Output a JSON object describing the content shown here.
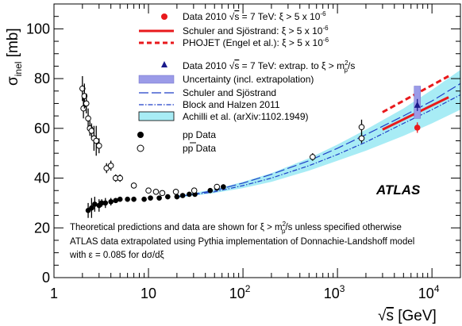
{
  "chart_data": {
    "type": "scatter",
    "xscale": "log",
    "xlim": [
      1,
      20000
    ],
    "ylim": [
      0,
      110
    ],
    "x_ticks": [
      {
        "value": 1,
        "label": "1"
      },
      {
        "value": 10,
        "label": "10"
      },
      {
        "value": 100,
        "base": "10",
        "exp": "2"
      },
      {
        "value": 1000,
        "base": "10",
        "exp": "3"
      },
      {
        "value": 10000,
        "base": "10",
        "exp": "4"
      }
    ],
    "y_ticks": [
      0,
      20,
      40,
      60,
      80,
      100
    ],
    "xlabel": {
      "sqrt": "√",
      "var": "s",
      "unit": " [GeV]"
    },
    "ylabel": {
      "sigma": "σ",
      "sub": "inel",
      "unit": " [mb]"
    },
    "atlas_label": "ATLAS",
    "legend": {
      "data2010": {
        "prefix": "Data 2010 ",
        "sqrt": "√",
        "var": "s",
        "eq": " = 7 TeV: ξ > 5 x 10",
        "exp": "-6"
      },
      "schuler": {
        "text": "Schuler and Sjöstrand: ξ > 5 x 10",
        "exp": "-6"
      },
      "phojet": {
        "text": "PHOJET (Engel et al.):  ξ > 5 x 10",
        "exp": "-6"
      },
      "data_extrap": {
        "prefix": "Data 2010 ",
        "sqrt": "√",
        "var": "s",
        "eq": " = 7 TeV: extrap. to ξ > m",
        "sup": "2",
        "sub": "p",
        "tail": "/s"
      },
      "uncertainty": "Uncertainty (incl. extrapolation)",
      "schuler2": "Schuler and Sjöstrand",
      "block": "Block and Halzen 2011",
      "achilli": "Achilli et al. (arXiv:1102.1949)",
      "pp": "pp Data",
      "ppbar": "pp Data"
    },
    "notes": {
      "line1a": "Theoretical predictions and data are shown for ξ > m",
      "line1sup": "2",
      "line1sub": "p",
      "line1b": "/s unless specified otherwise",
      "line2": "ATLAS data extrapolated using Pythia implementation of Donnachie-Landshoff model",
      "line3": "with ε = 0.085 for dσ/dξ"
    },
    "colors": {
      "data2010": "#e8191c",
      "extrap": "#1a1a8c",
      "uncertainty_band": "#9b9be8",
      "achilli_band": "#a8ecf5",
      "model_line": "#1f3fc8"
    },
    "series": [
      {
        "name": "pp Data",
        "marker": "filled-circle",
        "points": [
          {
            "x": 2.3,
            "y": 27,
            "err": 3
          },
          {
            "x": 2.5,
            "y": 28,
            "err": 4
          },
          {
            "x": 2.7,
            "y": 29.5,
            "err": 3
          },
          {
            "x": 3.0,
            "y": 29,
            "err": 2.5
          },
          {
            "x": 3.2,
            "y": 30,
            "err": 1.5
          },
          {
            "x": 3.5,
            "y": 30,
            "err": 2
          },
          {
            "x": 4.0,
            "y": 30.5,
            "err": 1.5
          },
          {
            "x": 4.5,
            "y": 31,
            "err": 1
          },
          {
            "x": 5.0,
            "y": 31.5,
            "err": 1
          },
          {
            "x": 6.0,
            "y": 31.5,
            "err": 1
          },
          {
            "x": 7.0,
            "y": 31.5,
            "err": 1
          },
          {
            "x": 9.0,
            "y": 31.5,
            "err": 1
          },
          {
            "x": 10.5,
            "y": 32,
            "err": 1
          },
          {
            "x": 13,
            "y": 32,
            "err": 1
          },
          {
            "x": 16,
            "y": 32.5,
            "err": 1
          },
          {
            "x": 20,
            "y": 32.5,
            "err": 1
          },
          {
            "x": 23,
            "y": 33,
            "err": 1
          },
          {
            "x": 27,
            "y": 33.5,
            "err": 1
          },
          {
            "x": 31,
            "y": 33.5,
            "err": 1
          },
          {
            "x": 45,
            "y": 35,
            "err": 1
          },
          {
            "x": 53,
            "y": 36,
            "err": 1
          },
          {
            "x": 62,
            "y": 36.5,
            "err": 1
          }
        ]
      },
      {
        "name": "pp Data",
        "marker": "open-circle",
        "points": [
          {
            "x": 2.0,
            "y": 76,
            "err": 5
          },
          {
            "x": 2.05,
            "y": 68,
            "err": 4
          },
          {
            "x": 2.1,
            "y": 73,
            "err": 5
          },
          {
            "x": 2.2,
            "y": 70,
            "err": 4
          },
          {
            "x": 2.3,
            "y": 64,
            "err": 4
          },
          {
            "x": 2.4,
            "y": 60,
            "err": 3
          },
          {
            "x": 2.5,
            "y": 59,
            "err": 3
          },
          {
            "x": 2.65,
            "y": 56,
            "err": 5
          },
          {
            "x": 2.8,
            "y": 55,
            "err": 6
          },
          {
            "x": 3.0,
            "y": 53,
            "err": 3
          },
          {
            "x": 3.6,
            "y": 44,
            "err": 2
          },
          {
            "x": 4.0,
            "y": 45,
            "err": 2
          },
          {
            "x": 4.5,
            "y": 40,
            "err": 1.5
          },
          {
            "x": 5.0,
            "y": 40,
            "err": 1.5
          },
          {
            "x": 7.0,
            "y": 37,
            "err": 1
          },
          {
            "x": 10,
            "y": 35,
            "err": 1
          },
          {
            "x": 12,
            "y": 34.5,
            "err": 1
          },
          {
            "x": 14,
            "y": 34,
            "err": 1
          },
          {
            "x": 19.5,
            "y": 34.5,
            "err": 1
          },
          {
            "x": 30.5,
            "y": 35,
            "err": 1
          },
          {
            "x": 53,
            "y": 36.5,
            "err": 1
          },
          {
            "x": 546,
            "y": 48.5,
            "err": 1.5
          },
          {
            "x": 1800,
            "y": 60.5,
            "err": 3
          },
          {
            "x": 1800,
            "y": 56,
            "err": 2
          }
        ]
      },
      {
        "name": "Data 2010 √s = 7 TeV: ξ > 5 x 10^-6",
        "marker": "filled-circle-red",
        "points": [
          {
            "x": 7000,
            "y": 60.3,
            "err": 2.1
          }
        ]
      },
      {
        "name": "Data 2010 √s = 7 TeV: extrap. to ξ > mp²/s",
        "marker": "filled-triangle",
        "points": [
          {
            "x": 7000,
            "y": 69.4,
            "err": 2.4
          }
        ],
        "uncertainty": [
          64,
          77
        ]
      }
    ],
    "curves": {
      "schuler_xi": {
        "x": [
          3000,
          15000
        ],
        "y": [
          59.5,
          72.5
        ]
      },
      "phojet_xi": {
        "x": [
          3000,
          15000
        ],
        "y": [
          66.5,
          81
        ]
      },
      "schuler_full": {
        "x": [
          20,
          50,
          100,
          200,
          500,
          1000,
          2000,
          5000,
          10000,
          20000
        ],
        "y": [
          32.5,
          35,
          38,
          41.5,
          47,
          52,
          57.5,
          65,
          71,
          78
        ]
      },
      "block_halzen": {
        "x": [
          20,
          50,
          100,
          200,
          500,
          1000,
          2000,
          5000,
          10000,
          20000
        ],
        "y": [
          32.5,
          34.5,
          37,
          40,
          45,
          49.5,
          54.5,
          62,
          67.5,
          73.5
        ]
      },
      "achilli_band": {
        "x": [
          20,
          50,
          100,
          200,
          500,
          1000,
          2000,
          5000,
          10000,
          20000
        ],
        "low": [
          32,
          34,
          36,
          38.5,
          43,
          47,
          51,
          57,
          62,
          67.5
        ],
        "high": [
          33,
          35.5,
          38.5,
          42,
          48,
          53.5,
          59.5,
          68,
          75.5,
          83.5
        ]
      }
    }
  }
}
